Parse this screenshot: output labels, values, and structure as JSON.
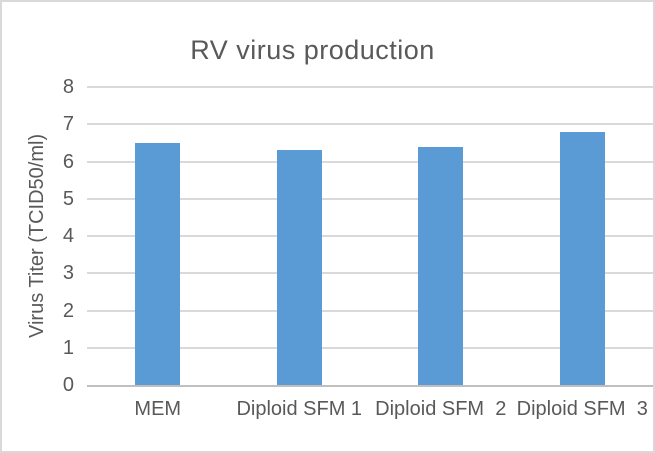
{
  "chart_data": {
    "type": "bar",
    "title": "RV virus production",
    "xlabel": "",
    "ylabel": "Virus Titer (TCID50/ml)",
    "categories": [
      "MEM",
      "Diploid SFM 1",
      "Diploid SFM  2",
      "Diploid SFM  3"
    ],
    "values": [
      6.5,
      6.3,
      6.4,
      6.8
    ],
    "ylim": [
      0,
      8
    ],
    "ytick_step": 1,
    "grid": true,
    "legend": "none",
    "bar_color": "#5B9BD5",
    "gridline_color": "#D9D9D9",
    "axis_line_color": "#BFBFBF",
    "text_color": "#595959",
    "frame_border_color": "#D9D9D9",
    "background_color": "#FFFFFF"
  }
}
